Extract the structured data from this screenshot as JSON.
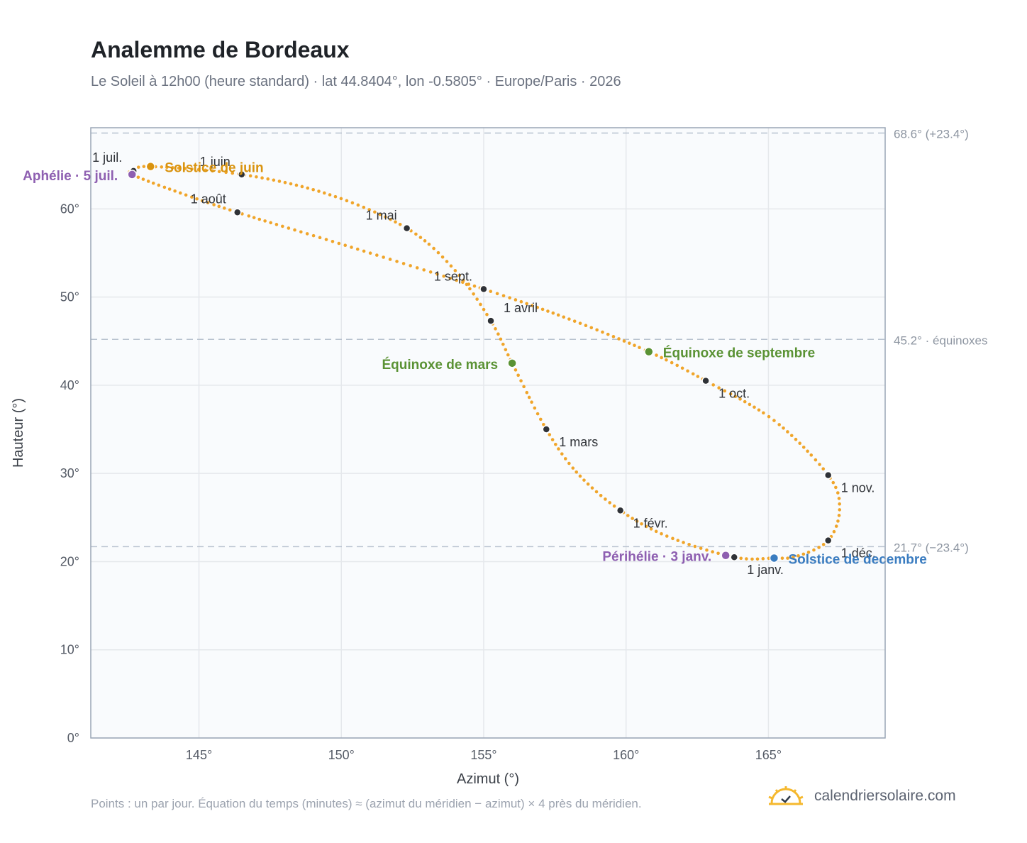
{
  "title": "Analemme de Bordeaux",
  "subtitle": "Le Soleil à 12h00 (heure standard) · lat 44.8404°, lon -0.5805° · Europe/Paris · 2026",
  "footnote": "Points : un par jour. Équation du temps (minutes) ≈ (azimut du méridien − azimut) × 4 près du méridien.",
  "brand": {
    "name": "calendriersolaire.com",
    "icon": "sun-logo-icon"
  },
  "colors": {
    "curve": "#f0a52a",
    "month_marker": "#2f3237",
    "solstice_june": "#d9930f",
    "solstice_december": "#3a7cc0",
    "equinox": "#5a9234",
    "apsis": "#8e5fb1",
    "ref_line": "#b8c2cf",
    "grid": "#e5e8ec",
    "plot_bg": "#f9fbfd",
    "frame": "#9aa6b6"
  },
  "chart_data": {
    "type": "scatter",
    "title": "Analemme de Bordeaux",
    "xlabel": "Azimut (°)",
    "ylabel": "Hauteur (°)",
    "xlim": [
      141.2,
      169.1
    ],
    "ylim": [
      0,
      69.2
    ],
    "x_ticks": [
      145,
      150,
      155,
      160,
      165
    ],
    "y_ticks": [
      0,
      10,
      20,
      30,
      40,
      50,
      60
    ],
    "grid": true,
    "reference_lines": [
      {
        "y": 68.6,
        "label": "68.6° (+23.4°)"
      },
      {
        "y": 45.2,
        "label": "45.2° · équinoxes"
      },
      {
        "y": 21.7,
        "label": "21.7° (−23.4°)"
      }
    ],
    "month_markers": [
      {
        "label": "1 janv.",
        "x": 163.8,
        "y": 20.5
      },
      {
        "label": "1 févr.",
        "x": 159.8,
        "y": 25.8
      },
      {
        "label": "1 mars",
        "x": 157.2,
        "y": 35.0
      },
      {
        "label": "1 avril",
        "x": 155.25,
        "y": 47.3
      },
      {
        "label": "1 mai",
        "x": 152.3,
        "y": 57.8
      },
      {
        "label": "1 juin",
        "x": 146.5,
        "y": 63.9
      },
      {
        "label": "1 juil.",
        "x": 142.7,
        "y": 64.3
      },
      {
        "label": "1 août",
        "x": 146.35,
        "y": 59.6
      },
      {
        "label": "1 sept.",
        "x": 155.0,
        "y": 50.9
      },
      {
        "label": "1 oct.",
        "x": 162.8,
        "y": 40.5
      },
      {
        "label": "1 nov.",
        "x": 167.1,
        "y": 29.8
      },
      {
        "label": "1 déc.",
        "x": 167.1,
        "y": 22.4
      }
    ],
    "key_events": [
      {
        "label": "Solstice de juin",
        "x": 143.3,
        "y": 64.8,
        "kind": "solstice_june"
      },
      {
        "label": "Aphélie · 5 juil.",
        "x": 142.65,
        "y": 63.9,
        "kind": "apsis"
      },
      {
        "label": "Équinoxe de mars",
        "x": 156.0,
        "y": 42.5,
        "kind": "equinox"
      },
      {
        "label": "Équinoxe de septembre",
        "x": 160.8,
        "y": 43.8,
        "kind": "equinox"
      },
      {
        "label": "Périhélie · 3 janv.",
        "x": 163.5,
        "y": 20.7,
        "kind": "apsis"
      },
      {
        "label": "Solstice de decembre",
        "x": 165.2,
        "y": 20.4,
        "kind": "solstice_december"
      }
    ],
    "path": [
      [
        165.2,
        20.4
      ],
      [
        163.8,
        20.5
      ],
      [
        161.5,
        22.8
      ],
      [
        159.8,
        25.8
      ],
      [
        158.3,
        30.0
      ],
      [
        157.2,
        35.0
      ],
      [
        156.0,
        42.5
      ],
      [
        155.25,
        47.3
      ],
      [
        154.0,
        53.0
      ],
      [
        152.3,
        57.8
      ],
      [
        149.5,
        61.7
      ],
      [
        146.5,
        63.9
      ],
      [
        143.3,
        64.8
      ],
      [
        142.7,
        64.3
      ],
      [
        142.65,
        63.9
      ],
      [
        144.0,
        62.2
      ],
      [
        146.35,
        59.6
      ],
      [
        150.5,
        55.5
      ],
      [
        155.0,
        50.9
      ],
      [
        158.0,
        47.5
      ],
      [
        160.8,
        43.8
      ],
      [
        162.8,
        40.5
      ],
      [
        165.2,
        36.0
      ],
      [
        167.1,
        29.8
      ],
      [
        167.5,
        26.0
      ],
      [
        167.1,
        22.4
      ],
      [
        166.0,
        20.6
      ],
      [
        165.2,
        20.4
      ]
    ]
  }
}
